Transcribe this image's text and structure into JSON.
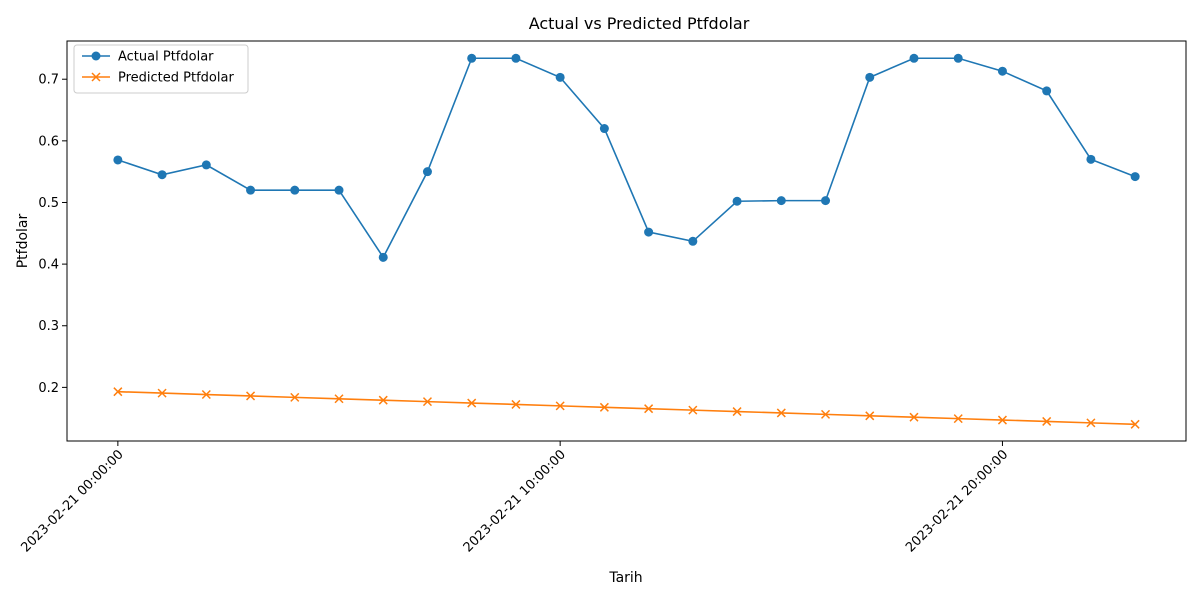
{
  "chart_data": {
    "type": "line",
    "title": "Actual vs Predicted Ptfdolar",
    "xlabel": "Tarih",
    "ylabel": "Ptfdolar",
    "x_ticks": [
      "2023-02-21 00:00:00",
      "2023-02-21 10:00:00",
      "2023-02-21 20:00:00"
    ],
    "x_tick_positions": [
      0,
      10,
      20
    ],
    "x": [
      0,
      1,
      2,
      3,
      4,
      5,
      6,
      7,
      8,
      9,
      10,
      11,
      12,
      13,
      14,
      15,
      16,
      17,
      18,
      19,
      20,
      21,
      22,
      23
    ],
    "xlim": [
      -1.15,
      24.15
    ],
    "ylim": [
      0.113,
      0.762
    ],
    "y_ticks": [
      0.2,
      0.3,
      0.4,
      0.5,
      0.6,
      0.7
    ],
    "y_tick_labels": [
      "0.2",
      "0.3",
      "0.4",
      "0.5",
      "0.6",
      "0.7"
    ],
    "grid": false,
    "legend_position": "upper left",
    "series": [
      {
        "name": "Actual Ptfdolar",
        "color": "#1f77b4",
        "marker": "circle",
        "values": [
          0.569,
          0.545,
          0.561,
          0.52,
          0.52,
          0.52,
          0.411,
          0.55,
          0.734,
          0.734,
          0.703,
          0.62,
          0.452,
          0.437,
          0.502,
          0.503,
          0.503,
          0.703,
          0.734,
          0.734,
          0.713,
          0.681,
          0.57,
          0.542
        ]
      },
      {
        "name": "Predicted Ptfdolar",
        "color": "#ff7f0e",
        "marker": "x",
        "values": [
          0.193,
          0.1907,
          0.1884,
          0.1861,
          0.1838,
          0.1815,
          0.1792,
          0.1769,
          0.1746,
          0.1723,
          0.17,
          0.1677,
          0.1654,
          0.1631,
          0.1608,
          0.1585,
          0.1562,
          0.1539,
          0.1516,
          0.1493,
          0.147,
          0.1447,
          0.1424,
          0.1401
        ]
      }
    ]
  }
}
